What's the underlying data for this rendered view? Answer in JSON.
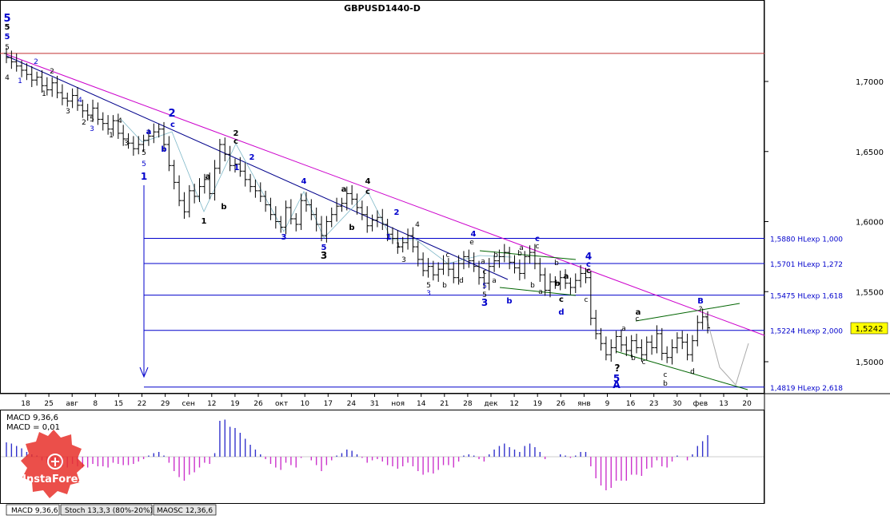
{
  "chart_data": [
    {
      "type": "ohlc",
      "title": "GBPUSD1440-D",
      "current_price": "1,5242",
      "y_ticks": [
        "1,7000",
        "1,6500",
        "1,6000",
        "1,5500",
        "1,5000"
      ],
      "x_ticks": [
        "18",
        "25",
        "авг",
        "8",
        "15",
        "22",
        "29",
        "сен",
        "12",
        "19",
        "26",
        "окт",
        "10",
        "17",
        "24",
        "31",
        "ноя",
        "14",
        "21",
        "28",
        "дек",
        "12",
        "19",
        "26",
        "янв",
        "9",
        "16",
        "23",
        "30",
        "фев",
        "13",
        "20"
      ],
      "levels": [
        {
          "label": "1,5880 HLexp 1,000",
          "value": 1.588
        },
        {
          "label": "1,5701 HLexp 1,272",
          "value": 1.5701
        },
        {
          "label": "1,5475 HLexp 1,618",
          "value": 1.5475
        },
        {
          "label": "1,5224 HLexp 2,000",
          "value": 1.5224
        },
        {
          "label": "1,4819 HLexp 2,618",
          "value": 1.4819
        }
      ],
      "resistance_level": 1.72,
      "wave_labels": [
        {
          "text": "5",
          "color": "#0000cc"
        },
        {
          "text": "5",
          "color": "#000000"
        },
        {
          "text": "5",
          "color": "#0000cc"
        },
        {
          "text": "5",
          "color": "#000000"
        },
        {
          "text": "4",
          "color": "#000000"
        },
        {
          "text": "1",
          "color": "#0000cc"
        },
        {
          "text": "2",
          "color": "#0000cc"
        },
        {
          "text": "2",
          "color": "#000000"
        },
        {
          "text": "1",
          "color": "#000000"
        },
        {
          "text": "3",
          "color": "#000000"
        },
        {
          "text": "4",
          "color": "#0000cc"
        },
        {
          "text": "2",
          "color": "#000000"
        },
        {
          "text": "5",
          "color": "#000000"
        },
        {
          "text": "3",
          "color": "#0000cc"
        },
        {
          "text": "4",
          "color": "#000000"
        },
        {
          "text": "1",
          "color": "#000000"
        },
        {
          "text": "3",
          "color": "#000000"
        },
        {
          "text": "a",
          "color": "#0000cc"
        },
        {
          "text": "5",
          "color": "#000000"
        },
        {
          "text": "b",
          "color": "#0000cc"
        },
        {
          "text": "5",
          "color": "#0000cc"
        },
        {
          "text": "2",
          "color": "#0000cc"
        },
        {
          "text": "c",
          "color": "#0000cc"
        },
        {
          "text": "1",
          "color": "#0000cc"
        },
        {
          "text": "a",
          "color": "#000000"
        },
        {
          "text": "1",
          "color": "#000000"
        },
        {
          "text": "b",
          "color": "#000000"
        },
        {
          "text": "2",
          "color": "#000000"
        },
        {
          "text": "c",
          "color": "#000000"
        },
        {
          "text": "1",
          "color": "#0000cc"
        },
        {
          "text": "2",
          "color": "#0000cc"
        },
        {
          "text": "3",
          "color": "#0000cc"
        },
        {
          "text": "4",
          "color": "#0000cc"
        },
        {
          "text": "5",
          "color": "#0000cc"
        },
        {
          "text": "3",
          "color": "#000000"
        },
        {
          "text": "a",
          "color": "#000000"
        },
        {
          "text": "b",
          "color": "#000000"
        },
        {
          "text": "4",
          "color": "#000000"
        },
        {
          "text": "c",
          "color": "#000000"
        },
        {
          "text": "2",
          "color": "#0000cc"
        },
        {
          "text": "1",
          "color": "#0000cc"
        },
        {
          "text": "4",
          "color": "#000000"
        },
        {
          "text": "1",
          "color": "#000000"
        },
        {
          "text": "3",
          "color": "#000000"
        },
        {
          "text": "5",
          "color": "#000000"
        },
        {
          "text": "3",
          "color": "#0000cc"
        },
        {
          "text": "b",
          "color": "#000000"
        },
        {
          "text": "c",
          "color": "#000000"
        },
        {
          "text": "d",
          "color": "#000000"
        },
        {
          "text": "4",
          "color": "#0000cc"
        },
        {
          "text": "e",
          "color": "#000000"
        },
        {
          "text": "5",
          "color": "#0000cc"
        },
        {
          "text": "5",
          "color": "#000000"
        },
        {
          "text": "3",
          "color": "#0000cc"
        },
        {
          "text": "b",
          "color": "#000000"
        },
        {
          "text": "a",
          "color": "#000000"
        },
        {
          "text": "c",
          "color": "#000000"
        },
        {
          "text": "b",
          "color": "#0000cc"
        },
        {
          "text": "a",
          "color": "#000000"
        },
        {
          "text": "c",
          "color": "#0000cc"
        },
        {
          "text": "c",
          "color": "#000000"
        },
        {
          "text": "b",
          "color": "#000000"
        },
        {
          "text": "a",
          "color": "#000000"
        },
        {
          "text": "d",
          "color": "#0000cc"
        },
        {
          "text": "a",
          "color": "#000000"
        },
        {
          "text": "c",
          "color": "#000000"
        },
        {
          "text": "b",
          "color": "#000000"
        },
        {
          "text": "4",
          "color": "#0000cc"
        },
        {
          "text": "c",
          "color": "#0000cc"
        },
        {
          "text": "c",
          "color": "#000000"
        },
        {
          "text": "b",
          "color": "#000000"
        },
        {
          "text": "a",
          "color": "#000000"
        },
        {
          "text": "c",
          "color": "#000000"
        },
        {
          "text": "b",
          "color": "#000000"
        },
        {
          "text": "a",
          "color": "#000000"
        },
        {
          "text": "a",
          "color": "#000000"
        },
        {
          "text": "?",
          "color": "#000000"
        },
        {
          "text": "5",
          "color": "#0000cc"
        },
        {
          "text": "A",
          "color": "#0000cc"
        },
        {
          "text": "c",
          "color": "#000000"
        },
        {
          "text": "b",
          "color": "#000000"
        },
        {
          "text": "c",
          "color": "#000000"
        },
        {
          "text": "c",
          "color": "#000000"
        },
        {
          "text": "b",
          "color": "#000000"
        },
        {
          "text": "d",
          "color": "#000000"
        },
        {
          "text": "B",
          "color": "#0000cc"
        },
        {
          "text": "?",
          "color": "#000000"
        }
      ],
      "series": [
        {
          "name": "GBPUSD1440",
          "close": [
            1.717,
            1.714,
            1.711,
            1.708,
            1.705,
            1.701,
            1.703,
            1.697,
            1.694,
            1.699,
            1.692,
            1.688,
            1.686,
            1.69,
            1.683,
            1.679,
            1.676,
            1.681,
            1.673,
            1.67,
            1.666,
            1.672,
            1.663,
            1.659,
            1.656,
            1.652,
            1.655,
            1.658,
            1.661,
            1.664,
            1.666,
            1.655,
            1.64,
            1.628,
            1.615,
            1.607,
            1.622,
            1.618,
            1.625,
            1.63,
            1.62,
            1.638,
            1.655,
            1.648,
            1.64,
            1.641,
            1.636,
            1.63,
            1.625,
            1.622,
            1.618,
            1.612,
            1.605,
            1.6,
            1.596,
            1.61,
            1.602,
            1.598,
            1.615,
            1.612,
            1.605,
            1.598,
            1.59,
            1.6,
            1.605,
            1.611,
            1.613,
            1.62,
            1.616,
            1.61,
            1.605,
            1.597,
            1.601,
            1.603,
            1.598,
            1.591,
            1.588,
            1.582,
            1.585,
            1.59,
            1.582,
            1.573,
            1.565,
            1.568,
            1.562,
            1.566,
            1.57,
            1.566,
            1.56,
            1.57,
            1.575,
            1.572,
            1.568,
            1.56,
            1.556,
            1.568,
            1.572,
            1.575,
            1.578,
            1.571,
            1.567,
            1.563,
            1.575,
            1.578,
            1.57,
            1.562,
            1.551,
            1.557,
            1.556,
            1.56,
            1.556,
            1.553,
            1.558,
            1.563,
            1.56,
            1.531,
            1.52,
            1.513,
            1.505,
            1.51,
            1.518,
            1.512,
            1.508,
            1.515,
            1.51,
            1.505,
            1.514,
            1.51,
            1.52,
            1.506,
            1.503,
            1.51,
            1.517,
            1.514,
            1.505,
            1.515,
            1.528,
            1.532,
            1.5242
          ]
        },
        {
          "name": "MACD 9,36,6",
          "values": [
            0.0024,
            0.0022,
            0.0018,
            0.0014,
            0.0008,
            0.0004,
            0.0002,
            -0.0006,
            -0.001,
            -0.0006,
            -0.0012,
            -0.0016,
            -0.0018,
            -0.0012,
            -0.0016,
            -0.0018,
            -0.0018,
            -0.0012,
            -0.0016,
            -0.0016,
            -0.0018,
            -0.001,
            -0.0012,
            -0.0014,
            -0.0014,
            -0.0012,
            -0.0008,
            -0.0004,
            0.0002,
            0.0006,
            0.0008,
            0.0002,
            -0.001,
            -0.0024,
            -0.0034,
            -0.004,
            -0.003,
            -0.0026,
            -0.0018,
            -0.001,
            -0.0012,
            0.0006,
            0.006,
            0.0062,
            0.005,
            0.0048,
            0.004,
            0.003,
            0.002,
            0.0012,
            0.0004,
            -0.0004,
            -0.0012,
            -0.0018,
            -0.0022,
            -0.001,
            -0.0014,
            -0.0018,
            -0.0002,
            0.0,
            -0.0006,
            -0.0014,
            -0.0024,
            -0.0014,
            -0.0006,
            0.0002,
            0.0006,
            0.0012,
            0.001,
            0.0004,
            -0.0002,
            -0.001,
            -0.0006,
            -0.0004,
            -0.0008,
            -0.0014,
            -0.0016,
            -0.002,
            -0.0016,
            -0.001,
            -0.0016,
            -0.0024,
            -0.003,
            -0.0026,
            -0.0028,
            -0.0022,
            -0.0014,
            -0.0014,
            -0.0018,
            -0.0008,
            0.0002,
            0.0004,
            0.0002,
            -0.0004,
            -0.0008,
            0.0004,
            0.0012,
            0.0018,
            0.0022,
            0.0016,
            0.0012,
            0.0008,
            0.0018,
            0.0022,
            0.0016,
            0.0008,
            -0.0004,
            0.0,
            0.0,
            0.0004,
            0.0002,
            -0.0002,
            0.0002,
            0.0008,
            0.0008,
            -0.0016,
            -0.0036,
            -0.0048,
            -0.0056,
            -0.0052,
            -0.004,
            -0.004,
            -0.004,
            -0.003,
            -0.003,
            -0.0032,
            -0.002,
            -0.0018,
            -0.0006,
            -0.0016,
            -0.0018,
            -0.0008,
            0.0002,
            0.0,
            -0.0006,
            0.0004,
            0.0018,
            0.0026,
            0.0036
          ]
        }
      ],
      "indicator_text": {
        "macd_label": "MACD 9,36,6",
        "macd_value": "MACD = 0,01"
      }
    }
  ],
  "tabs": [
    {
      "label": "MACD 9,36,6",
      "active": true
    },
    {
      "label": "Stoch 13,3,3 (80%-20%)",
      "active": false
    },
    {
      "label": "MAOSC 12,36,6",
      "active": false
    }
  ],
  "watermark": {
    "brand": "InstaForex"
  }
}
